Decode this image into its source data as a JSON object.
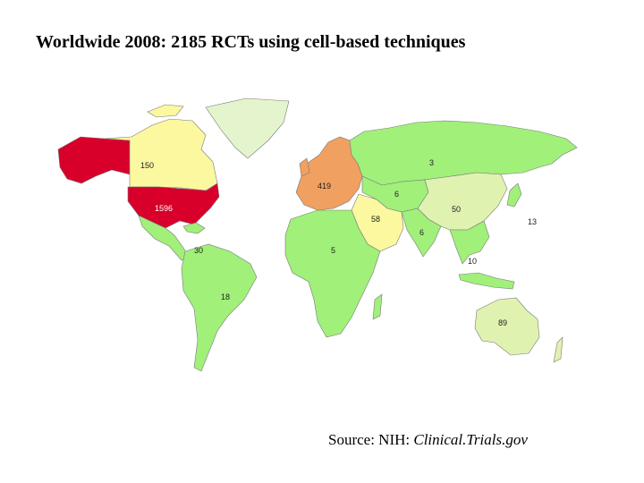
{
  "title": "Worldwide 2008: 2185 RCTs using cell-based techniques",
  "source": {
    "prefix": "Source: NIH: ",
    "name": "Clinical.Trials.gov"
  },
  "colors": {
    "very_high": "#d8002a",
    "high": "#f0a060",
    "medium": "#fbf8a0",
    "low": "#e0f2b0",
    "base": "#a0f07a",
    "greenland": "#e4f4cc"
  },
  "regions": [
    {
      "name": "Alaska",
      "label": "",
      "tier": "very_high"
    },
    {
      "name": "Canada",
      "label": "150",
      "tier": "medium"
    },
    {
      "name": "United States",
      "label": "1596",
      "tier": "very_high"
    },
    {
      "name": "Greenland",
      "label": "",
      "tier": "greenland"
    },
    {
      "name": "Central America",
      "label": "",
      "tier": "base"
    },
    {
      "name": "Caribbean",
      "label": "30",
      "tier": "base"
    },
    {
      "name": "South America",
      "label": "18",
      "tier": "base"
    },
    {
      "name": "Europe",
      "label": "419",
      "tier": "high"
    },
    {
      "name": "Russia",
      "label": "3",
      "tier": "base"
    },
    {
      "name": "Central Asia",
      "label": "6",
      "tier": "base"
    },
    {
      "name": "Middle East",
      "label": "58",
      "tier": "medium"
    },
    {
      "name": "Africa",
      "label": "5",
      "tier": "base"
    },
    {
      "name": "South Asia",
      "label": "6",
      "tier": "base"
    },
    {
      "name": "China",
      "label": "50",
      "tier": "low"
    },
    {
      "name": "Japan",
      "label": "13",
      "tier": "base"
    },
    {
      "name": "Southeast Asia",
      "label": "10",
      "tier": "base"
    },
    {
      "name": "Australia",
      "label": "89",
      "tier": "low"
    }
  ]
}
